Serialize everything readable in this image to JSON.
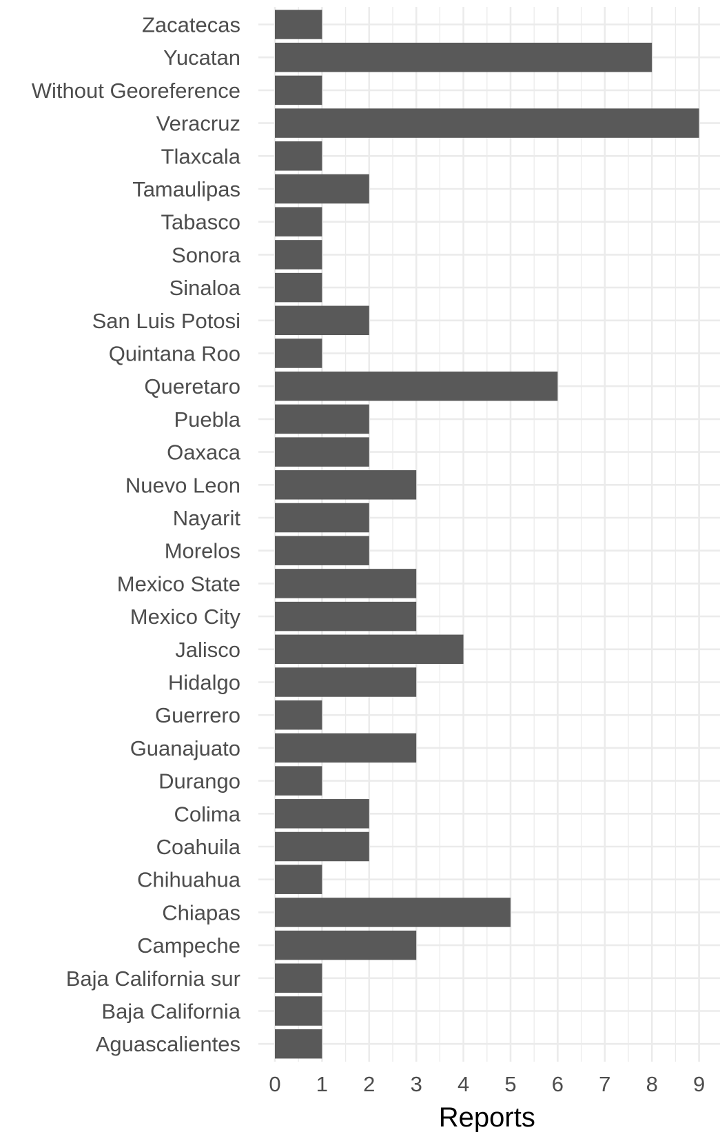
{
  "chart_data": {
    "type": "bar",
    "orientation": "horizontal",
    "categories": [
      "Zacatecas",
      "Yucatan",
      "Without Georeference",
      "Veracruz",
      "Tlaxcala",
      "Tamaulipas",
      "Tabasco",
      "Sonora",
      "Sinaloa",
      "San Luis Potosi",
      "Quintana Roo",
      "Queretaro",
      "Puebla",
      "Oaxaca",
      "Nuevo Leon",
      "Nayarit",
      "Morelos",
      "Mexico State",
      "Mexico City",
      "Jalisco",
      "Hidalgo",
      "Guerrero",
      "Guanajuato",
      "Durango",
      "Colima",
      "Coahuila",
      "Chihuahua",
      "Chiapas",
      "Campeche",
      "Baja California sur",
      "Baja California",
      "Aguascalientes"
    ],
    "values": [
      1,
      8,
      1,
      9,
      1,
      2,
      1,
      1,
      1,
      2,
      1,
      6,
      2,
      2,
      3,
      2,
      2,
      3,
      3,
      4,
      3,
      1,
      3,
      1,
      2,
      2,
      1,
      5,
      3,
      1,
      1,
      1
    ],
    "xlabel": "Reports",
    "ylabel": "",
    "xlim": [
      0,
      9
    ],
    "xticks": [
      "0",
      "1",
      "2",
      "3",
      "4",
      "5",
      "6",
      "7",
      "8",
      "9"
    ],
    "grid": true,
    "bar_color": "#595959",
    "grid_color": "#ebebeb",
    "legend": "none"
  }
}
